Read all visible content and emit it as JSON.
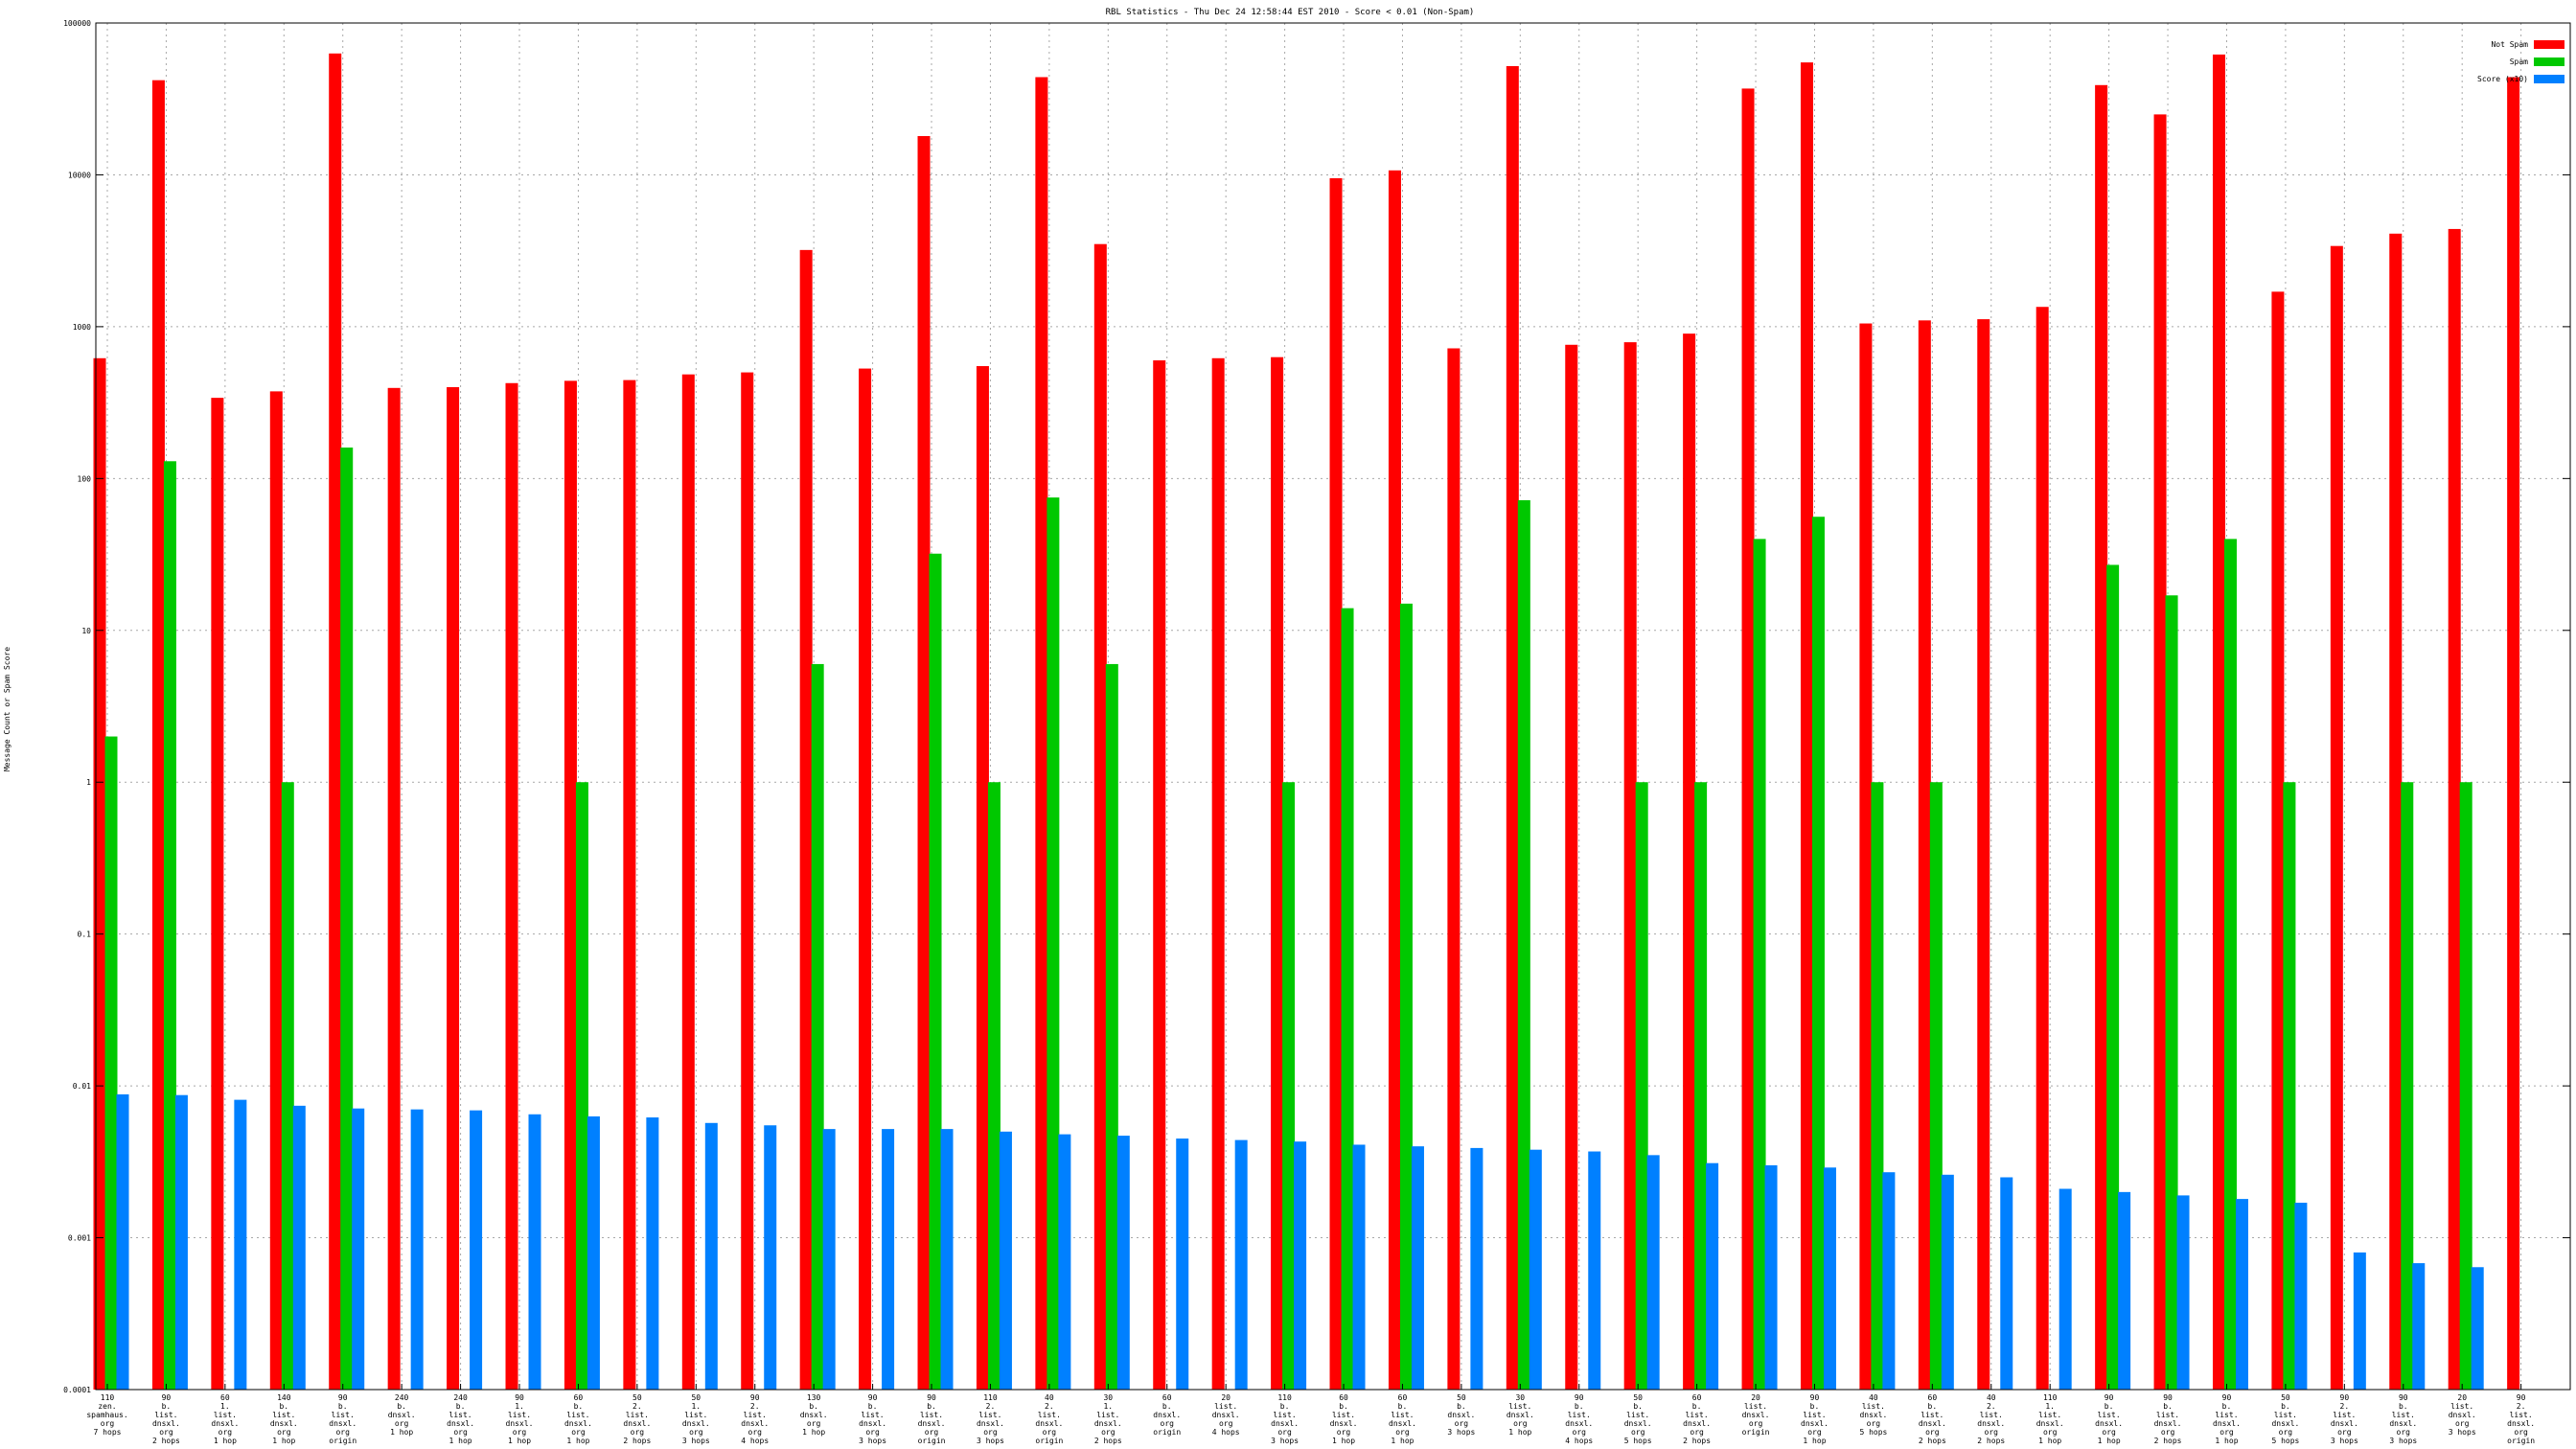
{
  "chart_data": {
    "type": "bar",
    "title": "RBL Statistics - Thu Dec 24 12:58:44 EST 2010 - Score < 0.01 (Non-Spam)",
    "xlabel": "",
    "ylabel": "Message Count or Spam Score",
    "yscale": "log",
    "ylim": [
      0.0001,
      100000
    ],
    "yticks": [
      {
        "value": 100000,
        "label": "100000"
      },
      {
        "value": 10000,
        "label": "10000"
      },
      {
        "value": 1000,
        "label": "1000"
      },
      {
        "value": 100,
        "label": "100"
      },
      {
        "value": 10,
        "label": "10"
      },
      {
        "value": 1,
        "label": "1"
      },
      {
        "value": 0.1,
        "label": "0.1"
      },
      {
        "value": 0.01,
        "label": "0.01"
      },
      {
        "value": 0.001,
        "label": "0.001"
      },
      {
        "value": 0.0001,
        "label": "0.0001"
      }
    ],
    "grid": true,
    "legend_position": "top-right",
    "categories": [
      [
        "110",
        "zen.",
        "spamhaus.",
        "org",
        "7 hops"
      ],
      [
        "90",
        "b.",
        "list.",
        "dnsxl.",
        "org",
        "2 hops"
      ],
      [
        "60",
        "1.",
        "list.",
        "dnsxl.",
        "org",
        "1 hop"
      ],
      [
        "140",
        "b.",
        "list.",
        "dnsxl.",
        "org",
        "1 hop"
      ],
      [
        "90",
        "b.",
        "list.",
        "dnsxl.",
        "org",
        "origin"
      ],
      [
        "240",
        "b.",
        "dnsxl.",
        "org",
        "1 hop"
      ],
      [
        "240",
        "b.",
        "list.",
        "dnsxl.",
        "org",
        "1 hop"
      ],
      [
        "90",
        "1.",
        "list.",
        "dnsxl.",
        "org",
        "1 hop"
      ],
      [
        "60",
        "b.",
        "list.",
        "dnsxl.",
        "org",
        "1 hop"
      ],
      [
        "50",
        "2.",
        "list.",
        "dnsxl.",
        "org",
        "2 hops"
      ],
      [
        "50",
        "1.",
        "list.",
        "dnsxl.",
        "org",
        "3 hops"
      ],
      [
        "90",
        "2.",
        "list.",
        "dnsxl.",
        "org",
        "4 hops"
      ],
      [
        "130",
        "b.",
        "dnsxl.",
        "org",
        "1 hop"
      ],
      [
        "90",
        "b.",
        "list.",
        "dnsxl.",
        "org",
        "3 hops"
      ],
      [
        "90",
        "b.",
        "list.",
        "dnsxl.",
        "org",
        "origin"
      ],
      [
        "110",
        "2.",
        "list.",
        "dnsxl.",
        "org",
        "3 hops"
      ],
      [
        "40",
        "2.",
        "list.",
        "dnsxl.",
        "org",
        "origin"
      ],
      [
        "30",
        "1.",
        "list.",
        "dnsxl.",
        "org",
        "2 hops"
      ],
      [
        "60",
        "b.",
        "dnsxl.",
        "org",
        "origin"
      ],
      [
        "20",
        "list.",
        "dnsxl.",
        "org",
        "4 hops"
      ],
      [
        "110",
        "b.",
        "list.",
        "dnsxl.",
        "org",
        "3 hops"
      ],
      [
        "60",
        "b.",
        "list.",
        "dnsxl.",
        "org",
        "1 hop"
      ],
      [
        "60",
        "b.",
        "list.",
        "dnsxl.",
        "org",
        "1 hop"
      ],
      [
        "50",
        "b.",
        "dnsxl.",
        "org",
        "3 hops"
      ],
      [
        "30",
        "list.",
        "dnsxl.",
        "org",
        "1 hop"
      ],
      [
        "90",
        "b.",
        "list.",
        "dnsxl.",
        "org",
        "4 hops"
      ],
      [
        "50",
        "b.",
        "list.",
        "dnsxl.",
        "org",
        "5 hops"
      ],
      [
        "60",
        "b.",
        "list.",
        "dnsxl.",
        "org",
        "2 hops"
      ],
      [
        "20",
        "list.",
        "dnsxl.",
        "org",
        "origin"
      ],
      [
        "90",
        "b.",
        "list.",
        "dnsxl.",
        "org",
        "1 hop"
      ],
      [
        "40",
        "list.",
        "dnsxl.",
        "org",
        "5 hops"
      ],
      [
        "60",
        "b.",
        "list.",
        "dnsxl.",
        "org",
        "2 hops"
      ],
      [
        "40",
        "2.",
        "list.",
        "dnsxl.",
        "org",
        "2 hops"
      ],
      [
        "110",
        "1.",
        "list.",
        "dnsxl.",
        "org",
        "1 hop"
      ],
      [
        "90",
        "b.",
        "list.",
        "dnsxl.",
        "org",
        "1 hop"
      ],
      [
        "90",
        "b.",
        "list.",
        "dnsxl.",
        "org",
        "2 hops"
      ],
      [
        "90",
        "b.",
        "list.",
        "dnsxl.",
        "org",
        "1 hop"
      ],
      [
        "50",
        "b.",
        "list.",
        "dnsxl.",
        "org",
        "5 hops"
      ],
      [
        "90",
        "2.",
        "list.",
        "dnsxl.",
        "org",
        "3 hops"
      ],
      [
        "90",
        "b.",
        "list.",
        "dnsxl.",
        "org",
        "3 hops"
      ],
      [
        "20",
        "list.",
        "dnsxl.",
        "org",
        "3 hops"
      ],
      [
        "90",
        "2.",
        "list.",
        "dnsxl.",
        "org",
        "origin"
      ]
    ],
    "series": [
      {
        "name": "Not Spam",
        "color": "#ff0000",
        "values": [
          620,
          42000,
          340,
          375,
          63000,
          395,
          400,
          425,
          440,
          445,
          485,
          500,
          3200,
          530,
          18000,
          550,
          44000,
          3500,
          600,
          620,
          630,
          9500,
          10700,
          720,
          52000,
          760,
          790,
          900,
          37000,
          55000,
          1050,
          1100,
          1120,
          1350,
          39000,
          25000,
          62000,
          1700,
          3400,
          4100,
          4400,
          44000
        ]
      },
      {
        "name": "Spam",
        "color": "#00c800",
        "values": [
          2,
          130,
          0,
          1,
          160,
          0,
          0,
          0,
          1,
          0,
          0,
          0,
          6,
          0,
          32,
          1,
          75,
          6,
          0,
          0,
          1,
          14,
          15,
          0,
          72,
          0,
          1,
          1,
          40,
          56,
          1,
          1,
          0,
          0,
          27,
          17,
          40,
          1,
          0,
          1,
          1,
          0
        ]
      },
      {
        "name": "Score (x10)",
        "color": "#0080ff",
        "values": [
          0.0088,
          0.0087,
          0.0081,
          0.0074,
          0.0071,
          0.007,
          0.0069,
          0.0065,
          0.0063,
          0.0062,
          0.0057,
          0.0055,
          0.0052,
          0.0052,
          0.0052,
          0.005,
          0.0048,
          0.0047,
          0.0045,
          0.0044,
          0.0043,
          0.0041,
          0.004,
          0.0039,
          0.0038,
          0.0037,
          0.0035,
          0.0031,
          0.003,
          0.0029,
          0.0027,
          0.0026,
          0.0025,
          0.0021,
          0.002,
          0.0019,
          0.0018,
          0.0017,
          0.0008,
          0.00068,
          0.00064,
          0
        ]
      }
    ]
  }
}
